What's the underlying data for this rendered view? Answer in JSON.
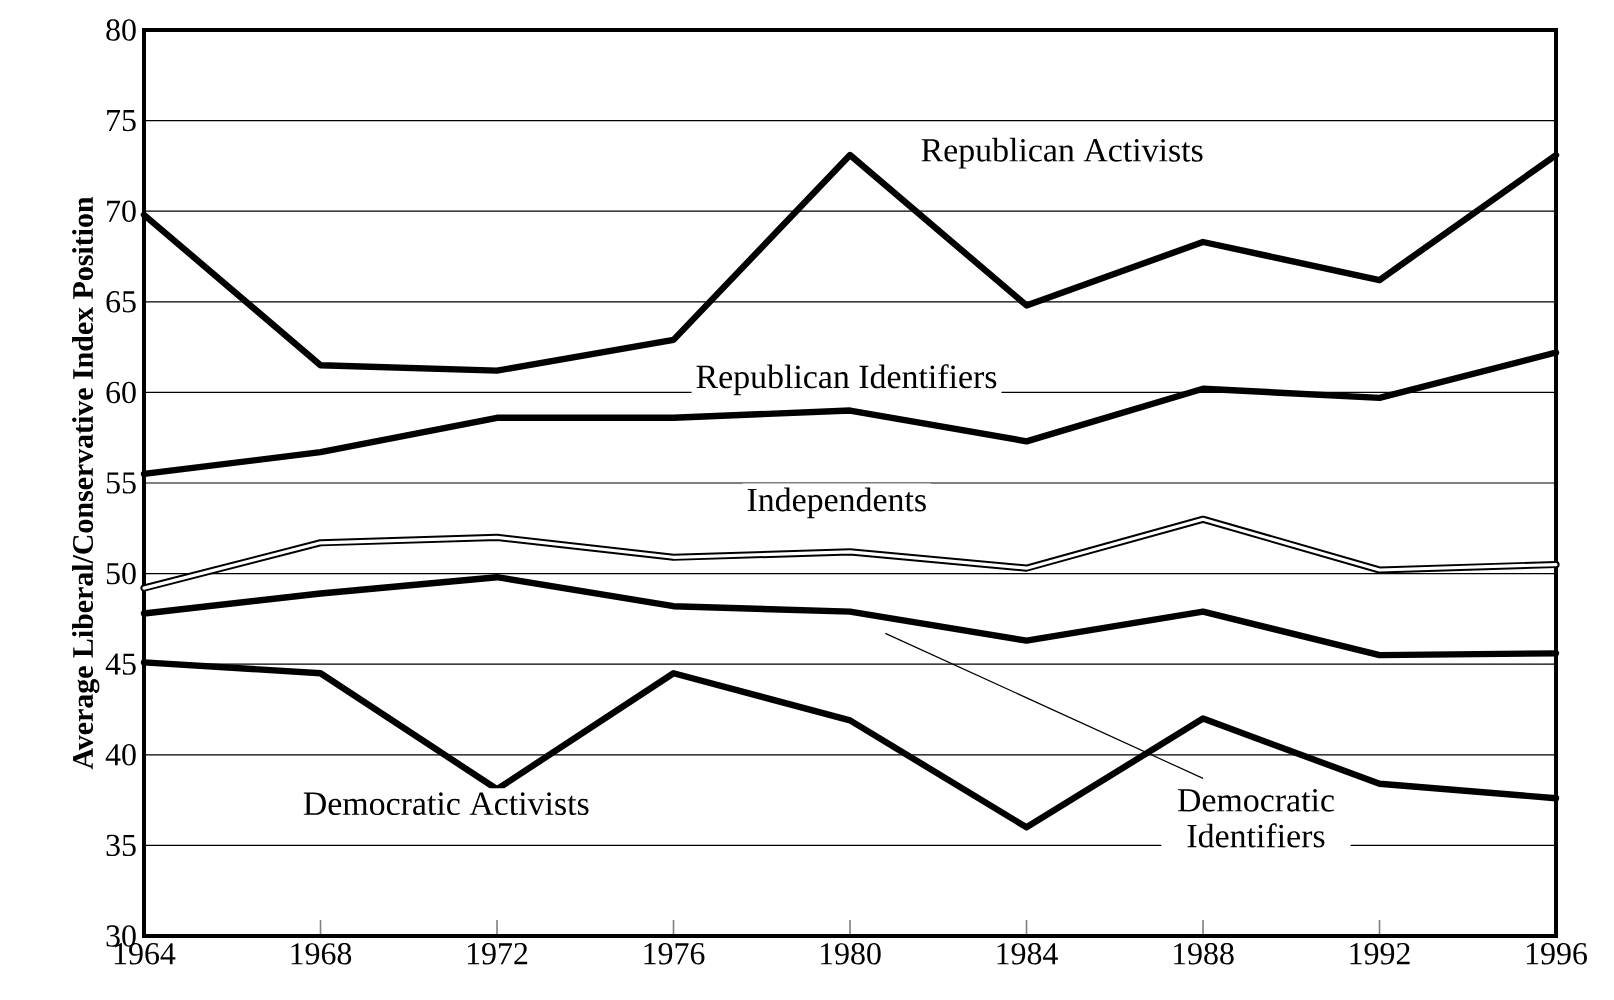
{
  "chart_data": {
    "type": "line",
    "ylabel": "Average Liberal/Conservative Index Position",
    "x": [
      1964,
      1968,
      1972,
      1976,
      1980,
      1984,
      1988,
      1992,
      1996
    ],
    "xlim": [
      1964,
      1996
    ],
    "xticks": [
      1964,
      1968,
      1972,
      1976,
      1980,
      1984,
      1988,
      1992,
      1996
    ],
    "ylim": [
      30,
      80
    ],
    "yticks": [
      30,
      35,
      40,
      45,
      50,
      55,
      60,
      65,
      70,
      75,
      80
    ],
    "grid": "y",
    "line_style": "solid",
    "marker": "none",
    "series": [
      {
        "name": "Republican Activists",
        "color": "#000000",
        "values": [
          69.8,
          61.5,
          61.2,
          62.9,
          73.1,
          64.8,
          68.3,
          66.2,
          73.1
        ]
      },
      {
        "name": "Republican Identifiers",
        "color": "#000000",
        "values": [
          55.5,
          56.7,
          58.6,
          58.6,
          59.0,
          57.3,
          60.2,
          59.7,
          62.2
        ]
      },
      {
        "name": "Independents",
        "color": "#000000",
        "values": [
          49.2,
          51.7,
          52.0,
          50.9,
          51.2,
          50.3,
          53.0,
          50.2,
          50.5
        ]
      },
      {
        "name": "Democratic Identifiers",
        "color": "#000000",
        "values": [
          47.8,
          48.9,
          49.8,
          48.2,
          47.9,
          46.3,
          47.9,
          45.5,
          45.6
        ]
      },
      {
        "name": "Democratic Activists",
        "color": "#000000",
        "values": [
          45.1,
          44.5,
          38.1,
          44.5,
          41.9,
          36.0,
          42.0,
          38.4,
          37.6
        ]
      }
    ]
  }
}
